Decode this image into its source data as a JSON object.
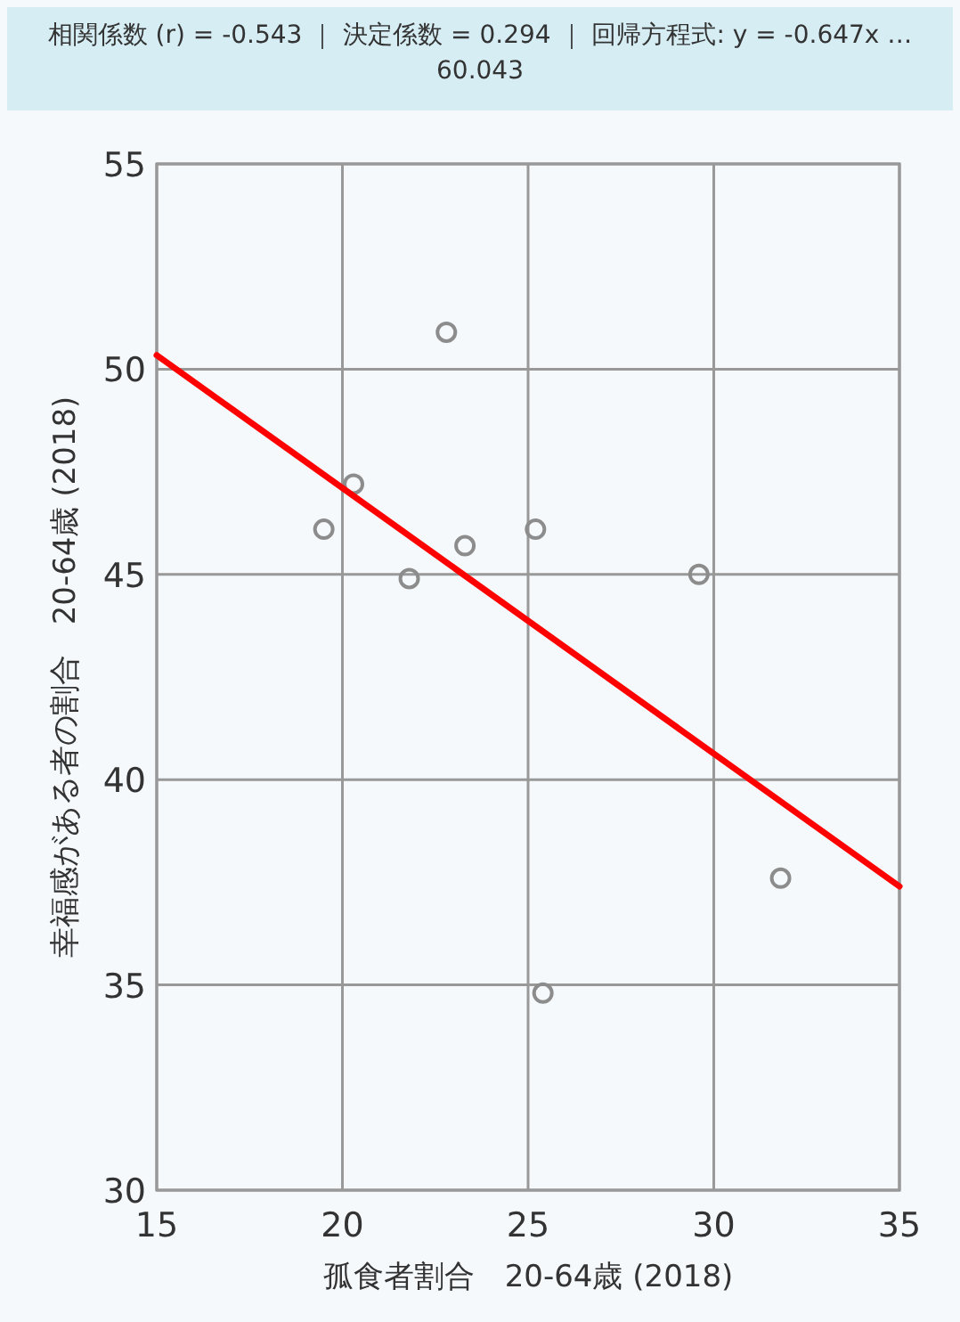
{
  "chart_data": {
    "type": "scatter",
    "title": "相関係数 (r) = -0.543 ｜ 決定係数 =  0.294 ｜ 回帰方程式: y = -0.647x … 60.043",
    "xlabel": "孤食者割合　20-64歳 (2018)",
    "ylabel": "幸福感がある者の割合　20-64歳 (2018)",
    "xlim": [
      15,
      35
    ],
    "ylim": [
      30,
      55
    ],
    "xticks": [
      15,
      20,
      25,
      30,
      35
    ],
    "yticks": [
      30,
      35,
      40,
      45,
      50,
      55
    ],
    "grid": true,
    "series": [
      {
        "marker": "circle",
        "color": "#8c8c8c",
        "x": [
          19.5,
          20.3,
          22.8,
          21.8,
          23.3,
          25.2,
          29.6,
          31.8,
          25.4
        ],
        "values": [
          46.1,
          47.2,
          50.9,
          44.9,
          45.7,
          46.1,
          45.0,
          37.6,
          34.8
        ]
      },
      {
        "type": "line",
        "color": "#ff0000",
        "x": [
          15,
          35
        ],
        "values": [
          50.34,
          37.4
        ]
      }
    ]
  }
}
